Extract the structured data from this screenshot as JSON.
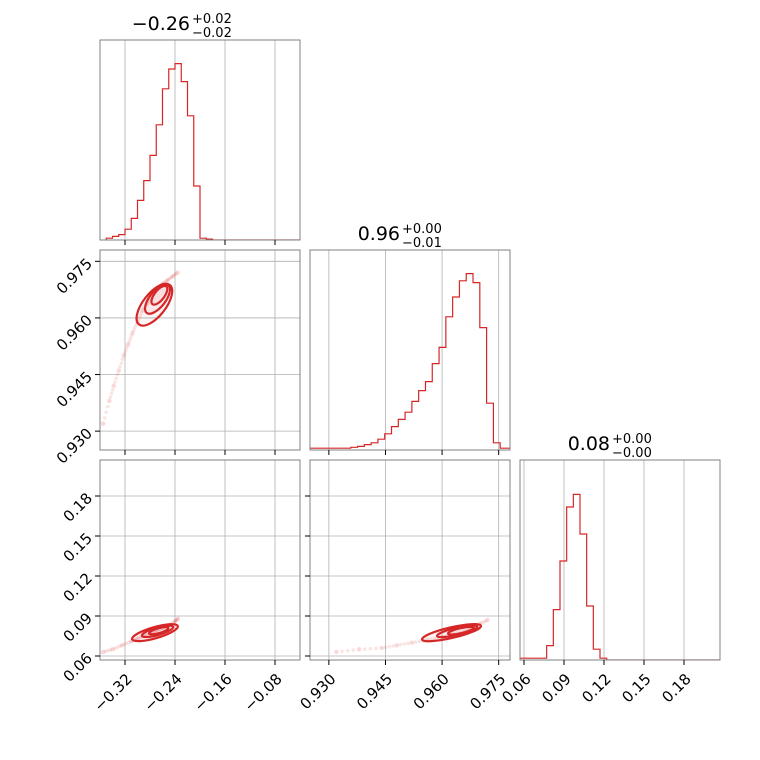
{
  "chart_data": {
    "type": "corner",
    "color": "#d62728",
    "parameters": [
      {
        "range": [
          -0.36,
          -0.04
        ],
        "ticks": [
          -0.32,
          -0.24,
          -0.16,
          -0.08
        ],
        "tick_labels": [
          "−0.32",
          "−0.24",
          "−0.16",
          "−0.08"
        ],
        "title": {
          "median": "−0.26",
          "upper": "+0.02",
          "lower": "−0.02"
        }
      },
      {
        "range": [
          0.925,
          0.978
        ],
        "ticks": [
          0.93,
          0.945,
          0.96,
          0.975
        ],
        "tick_labels": [
          "0.930",
          "0.945",
          "0.960",
          "0.975"
        ],
        "title": {
          "median": "0.96",
          "upper": "+0.00",
          "lower": "−0.01"
        }
      },
      {
        "range": [
          0.057,
          0.207
        ],
        "ticks": [
          0.06,
          0.09,
          0.12,
          0.15,
          0.18
        ],
        "tick_labels": [
          "0.06",
          "0.09",
          "0.12",
          "0.15",
          "0.18"
        ],
        "title": {
          "median": "0.08",
          "upper": "+0.00",
          "lower": "−0.00"
        }
      }
    ],
    "histograms": [
      {
        "param": 0,
        "bins": [
          -0.35,
          -0.34,
          -0.33,
          -0.32,
          -0.31,
          -0.3,
          -0.29,
          -0.28,
          -0.27,
          -0.26,
          -0.25,
          -0.24,
          -0.23,
          -0.22,
          -0.21,
          -0.2,
          -0.19,
          -0.18,
          -0.17,
          -0.16,
          -0.15,
          -0.14,
          -0.13,
          -0.12,
          -0.11,
          -0.1,
          -0.09,
          -0.08,
          -0.07,
          -0.06,
          -0.05,
          -0.04
        ],
        "counts": [
          0.01,
          0.02,
          0.03,
          0.06,
          0.12,
          0.22,
          0.33,
          0.47,
          0.64,
          0.84,
          0.95,
          0.98,
          0.88,
          0.69,
          0.3,
          0.01,
          0.005,
          0,
          0,
          0,
          0,
          0,
          0,
          0,
          0,
          0,
          0,
          0,
          0,
          0,
          0
        ]
      },
      {
        "param": 1,
        "bins": [
          0.925,
          0.9268,
          0.9286,
          0.9304,
          0.9322,
          0.934,
          0.9358,
          0.9376,
          0.9394,
          0.9412,
          0.943,
          0.9448,
          0.9466,
          0.9484,
          0.9502,
          0.952,
          0.9538,
          0.9556,
          0.9574,
          0.9592,
          0.961,
          0.9628,
          0.9646,
          0.9664,
          0.9682,
          0.97,
          0.9718,
          0.9736,
          0.9754,
          0.9772,
          0.978
        ],
        "counts": [
          0.01,
          0.01,
          0.01,
          0.01,
          0.01,
          0.01,
          0.015,
          0.02,
          0.03,
          0.04,
          0.06,
          0.09,
          0.13,
          0.17,
          0.21,
          0.27,
          0.33,
          0.38,
          0.48,
          0.57,
          0.74,
          0.85,
          0.94,
          0.98,
          0.93,
          0.68,
          0.26,
          0.04,
          0.01,
          0.01
        ]
      },
      {
        "param": 2,
        "bins": [
          0.057,
          0.062,
          0.067,
          0.072,
          0.077,
          0.082,
          0.087,
          0.092,
          0.097,
          0.102,
          0.107,
          0.112,
          0.117,
          0.122,
          0.127,
          0.132,
          0.137,
          0.142,
          0.147,
          0.152,
          0.157,
          0.162,
          0.167,
          0.172,
          0.177,
          0.182,
          0.187,
          0.192,
          0.197,
          0.202,
          0.207
        ],
        "counts": [
          0.01,
          0.01,
          0.01,
          0.01,
          0.08,
          0.28,
          0.55,
          0.85,
          0.92,
          0.7,
          0.3,
          0.06,
          0.01,
          0,
          0,
          0,
          0,
          0,
          0,
          0,
          0,
          0,
          0,
          0,
          0,
          0,
          0,
          0,
          0,
          0
        ]
      }
    ],
    "scatter_2d": [
      {
        "x_param": 0,
        "y_param": 1,
        "points": [
          [
            -0.355,
            0.932
          ],
          [
            -0.345,
            0.938
          ],
          [
            -0.338,
            0.942
          ],
          [
            -0.33,
            0.946
          ],
          [
            -0.322,
            0.95
          ],
          [
            -0.315,
            0.953
          ],
          [
            -0.308,
            0.956
          ],
          [
            -0.3,
            0.959
          ],
          [
            -0.292,
            0.962
          ],
          [
            -0.284,
            0.964
          ],
          [
            -0.276,
            0.966
          ],
          [
            -0.268,
            0.968
          ],
          [
            -0.26,
            0.969
          ],
          [
            -0.252,
            0.97
          ],
          [
            -0.244,
            0.971
          ],
          [
            -0.236,
            0.972
          ]
        ]
      },
      {
        "x_param": 0,
        "y_param": 2,
        "points": [
          [
            -0.355,
            0.063
          ],
          [
            -0.34,
            0.065
          ],
          [
            -0.325,
            0.068
          ],
          [
            -0.31,
            0.071
          ],
          [
            -0.3,
            0.073
          ],
          [
            -0.29,
            0.075
          ],
          [
            -0.28,
            0.077
          ],
          [
            -0.27,
            0.079
          ],
          [
            -0.26,
            0.081
          ],
          [
            -0.25,
            0.083
          ],
          [
            -0.24,
            0.086
          ],
          [
            -0.235,
            0.088
          ]
        ]
      },
      {
        "x_param": 1,
        "y_param": 2,
        "points": [
          [
            0.932,
            0.063
          ],
          [
            0.938,
            0.065
          ],
          [
            0.944,
            0.066
          ],
          [
            0.948,
            0.068
          ],
          [
            0.952,
            0.07
          ],
          [
            0.956,
            0.072
          ],
          [
            0.96,
            0.074
          ],
          [
            0.963,
            0.076
          ],
          [
            0.966,
            0.078
          ],
          [
            0.968,
            0.081
          ],
          [
            0.97,
            0.084
          ],
          [
            0.972,
            0.087
          ]
        ]
      }
    ],
    "contours_2d": [
      {
        "x_param": 0,
        "y_param": 1,
        "ellipses": [
          {
            "cx": -0.273,
            "cy": 0.9635,
            "rx": 0.04,
            "ry": 0.003,
            "angle_deg": -52
          },
          {
            "cx": -0.268,
            "cy": 0.965,
            "rx": 0.028,
            "ry": 0.0021,
            "angle_deg": -52
          },
          {
            "cx": -0.265,
            "cy": 0.966,
            "rx": 0.018,
            "ry": 0.0013,
            "angle_deg": -52
          }
        ]
      },
      {
        "x_param": 0,
        "y_param": 2,
        "ellipses": [
          {
            "cx": -0.272,
            "cy": 0.0775,
            "rx": 0.038,
            "ry": 0.0042,
            "angle_deg": -16
          },
          {
            "cx": -0.268,
            "cy": 0.0785,
            "rx": 0.026,
            "ry": 0.0028,
            "angle_deg": -16
          },
          {
            "cx": -0.266,
            "cy": 0.079,
            "rx": 0.016,
            "ry": 0.0018,
            "angle_deg": -16
          }
        ]
      },
      {
        "x_param": 1,
        "y_param": 2,
        "ellipses": [
          {
            "cx": 0.9625,
            "cy": 0.0775,
            "rx": 0.008,
            "ry": 0.004,
            "angle_deg": -13
          },
          {
            "cx": 0.964,
            "cy": 0.0785,
            "rx": 0.0055,
            "ry": 0.0027,
            "angle_deg": -13
          },
          {
            "cx": 0.965,
            "cy": 0.079,
            "rx": 0.0035,
            "ry": 0.0017,
            "angle_deg": -13
          }
        ]
      }
    ],
    "grid": true
  }
}
